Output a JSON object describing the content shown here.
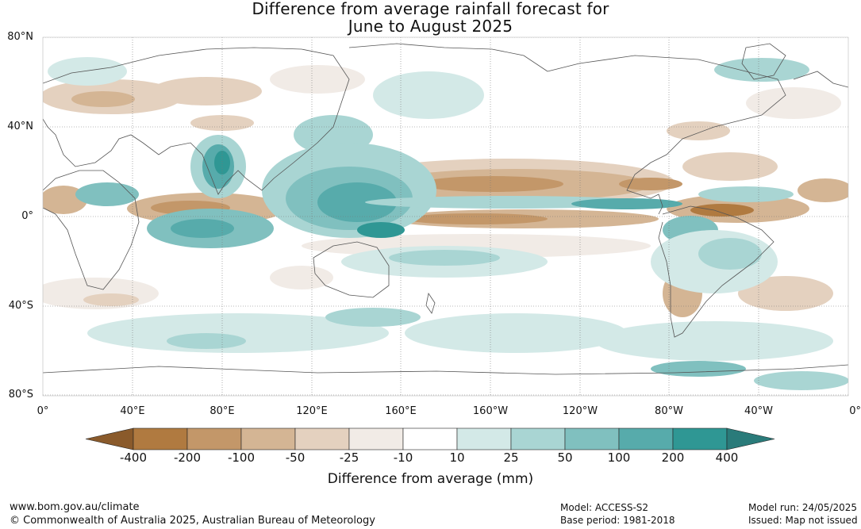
{
  "title_line1": "Difference from average rainfall forecast for",
  "title_line2": "June to August 2025",
  "lat_labels": [
    "80°N",
    "40°N",
    "0°",
    "40°S",
    "80°S"
  ],
  "lon_labels": [
    "0°",
    "40°E",
    "80°E",
    "120°E",
    "160°E",
    "160°W",
    "120°W",
    "80°W",
    "40°W",
    "0°"
  ],
  "colorbar": {
    "title": "Difference from average (mm)",
    "tick_labels": [
      "-400",
      "-200",
      "-100",
      "-50",
      "-25",
      "-10",
      "10",
      "25",
      "50",
      "100",
      "200",
      "400"
    ],
    "colors": {
      "below_min": "#8a5a2b",
      "bins": [
        "#b07a40",
        "#c39769",
        "#d4b594",
        "#e4d1bf",
        "#f1ebe6",
        "#ffffff",
        "#d3e9e7",
        "#a9d5d3",
        "#80c0bf",
        "#57abab",
        "#2f9794"
      ],
      "above_max": "#2a7b7a"
    }
  },
  "footer": {
    "website": "www.bom.gov.au/climate",
    "copyright": "© Commonwealth of Australia 2025, Australian Bureau of Meteorology",
    "model": "Model: ACCESS-S2",
    "base_period": "Base period: 1981-2018",
    "model_run": "Model run: 24/05/2025",
    "issued": "Issued: Map not issued"
  }
}
